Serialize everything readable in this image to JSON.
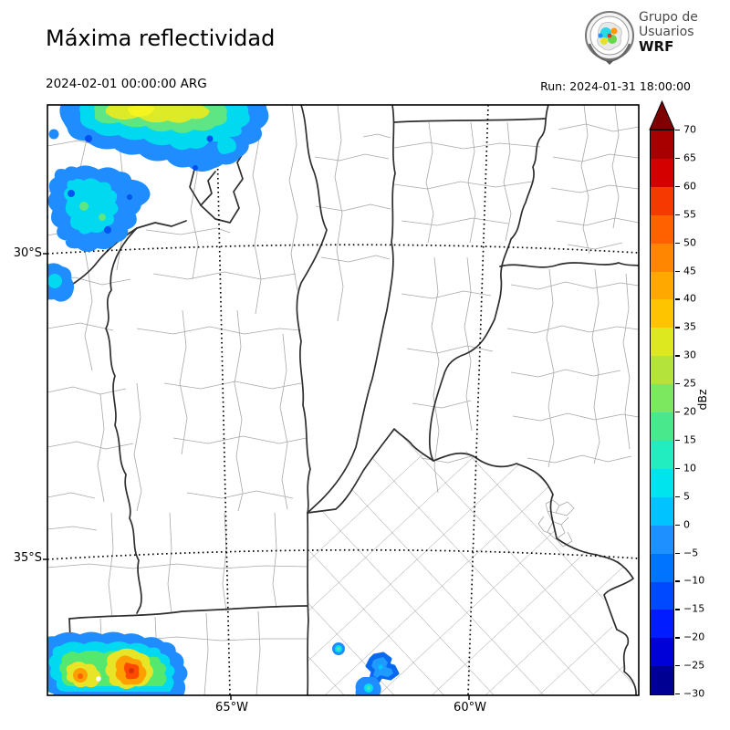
{
  "header": {
    "title": "Máxima reflectividad",
    "valid_time": "2024-02-01 00:00:00 ARG",
    "run_label": "Run: 2024-01-31 18:00:00"
  },
  "logo": {
    "line1": "Grupo de",
    "line2": "Usuarios",
    "line3": "WRF"
  },
  "map": {
    "lat_tick_30": "30°S",
    "lat_tick_35": "35°S",
    "lon_tick_65": "65°W",
    "lon_tick_60": "60°W",
    "land_color": "#ffffff",
    "province_border_color": "#2e2e2e",
    "department_border_color": "#a8a8a8",
    "gridline_style": "dotted"
  },
  "colorbar": {
    "unit": "dBz",
    "min": -30,
    "max": 70,
    "step": 5,
    "over_arrow_color": "#7f0000",
    "tick_labels_top_to_bottom": [
      "70",
      "65",
      "60",
      "55",
      "50",
      "45",
      "40",
      "35",
      "30",
      "25",
      "20",
      "15",
      "10",
      "5",
      "0",
      "−5",
      "−10",
      "−15",
      "−20",
      "−25",
      "−30"
    ],
    "band_colors_top_to_bottom": [
      "#a80000",
      "#d40000",
      "#f53900",
      "#ff6000",
      "#ff8600",
      "#ffa800",
      "#ffc400",
      "#dde81f",
      "#b4e43c",
      "#7ce85f",
      "#4ae88c",
      "#22edc0",
      "#00e4ee",
      "#00c3ff",
      "#1e90ff",
      "#0073ff",
      "#0049ff",
      "#001cff",
      "#0000d8",
      "#000092"
    ]
  },
  "radar_echoes": [
    {
      "region": "northwest (Salta/Tucumán area)",
      "approx_max_dbz": 35
    },
    {
      "region": "west-northwest secondary cells",
      "approx_max_dbz": 20
    },
    {
      "region": "southwest (San Luis/La Pampa border)",
      "approx_max_dbz": 55
    },
    {
      "region": "southern Buenos Aires small cells",
      "approx_max_dbz": 15
    }
  ]
}
